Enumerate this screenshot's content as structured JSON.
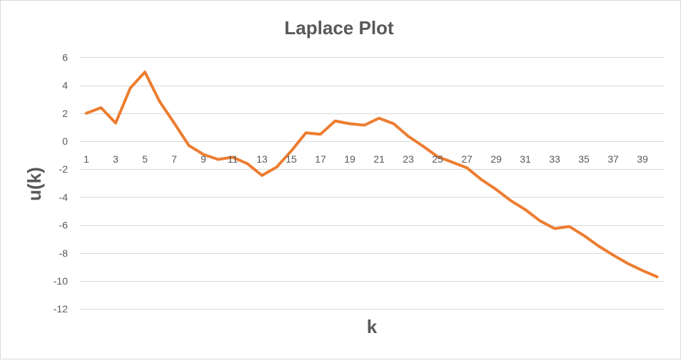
{
  "chart_data": {
    "type": "line",
    "title": "Laplace Plot",
    "xlabel": "k",
    "ylabel": "u(k)",
    "ylim": [
      -12,
      6
    ],
    "y_ticks": [
      6,
      4,
      2,
      0,
      -2,
      -4,
      -6,
      -8,
      -10,
      -12
    ],
    "x_tick_labels": [
      "1",
      "3",
      "5",
      "7",
      "9",
      "11",
      "13",
      "15",
      "17",
      "19",
      "21",
      "23",
      "25",
      "27",
      "29",
      "31",
      "33",
      "35",
      "37",
      "39"
    ],
    "grid": true,
    "colors": {
      "series": "#ed7d31",
      "grid": "#d9d9d9",
      "text": "#595959"
    },
    "x": [
      1,
      2,
      3,
      4,
      5,
      6,
      7,
      8,
      9,
      10,
      11,
      12,
      13,
      14,
      15,
      16,
      17,
      18,
      19,
      20,
      21,
      22,
      23,
      24,
      25,
      26,
      27,
      28,
      29,
      30,
      31,
      32,
      33,
      34,
      35,
      36,
      37,
      38,
      39,
      40
    ],
    "series": [
      {
        "values": [
          2.0,
          2.4,
          1.3,
          3.8,
          4.95,
          2.85,
          1.3,
          -0.3,
          -0.95,
          -1.3,
          -1.15,
          -1.6,
          -2.45,
          -1.85,
          -0.7,
          0.6,
          0.5,
          1.45,
          1.25,
          1.15,
          1.65,
          1.25,
          0.35,
          -0.35,
          -1.1,
          -1.5,
          -1.9,
          -2.75,
          -3.45,
          -4.25,
          -4.9,
          -5.7,
          -6.25,
          -6.1,
          -6.75,
          -7.5,
          -8.15,
          -8.75,
          -9.25,
          -9.7
        ]
      }
    ]
  }
}
